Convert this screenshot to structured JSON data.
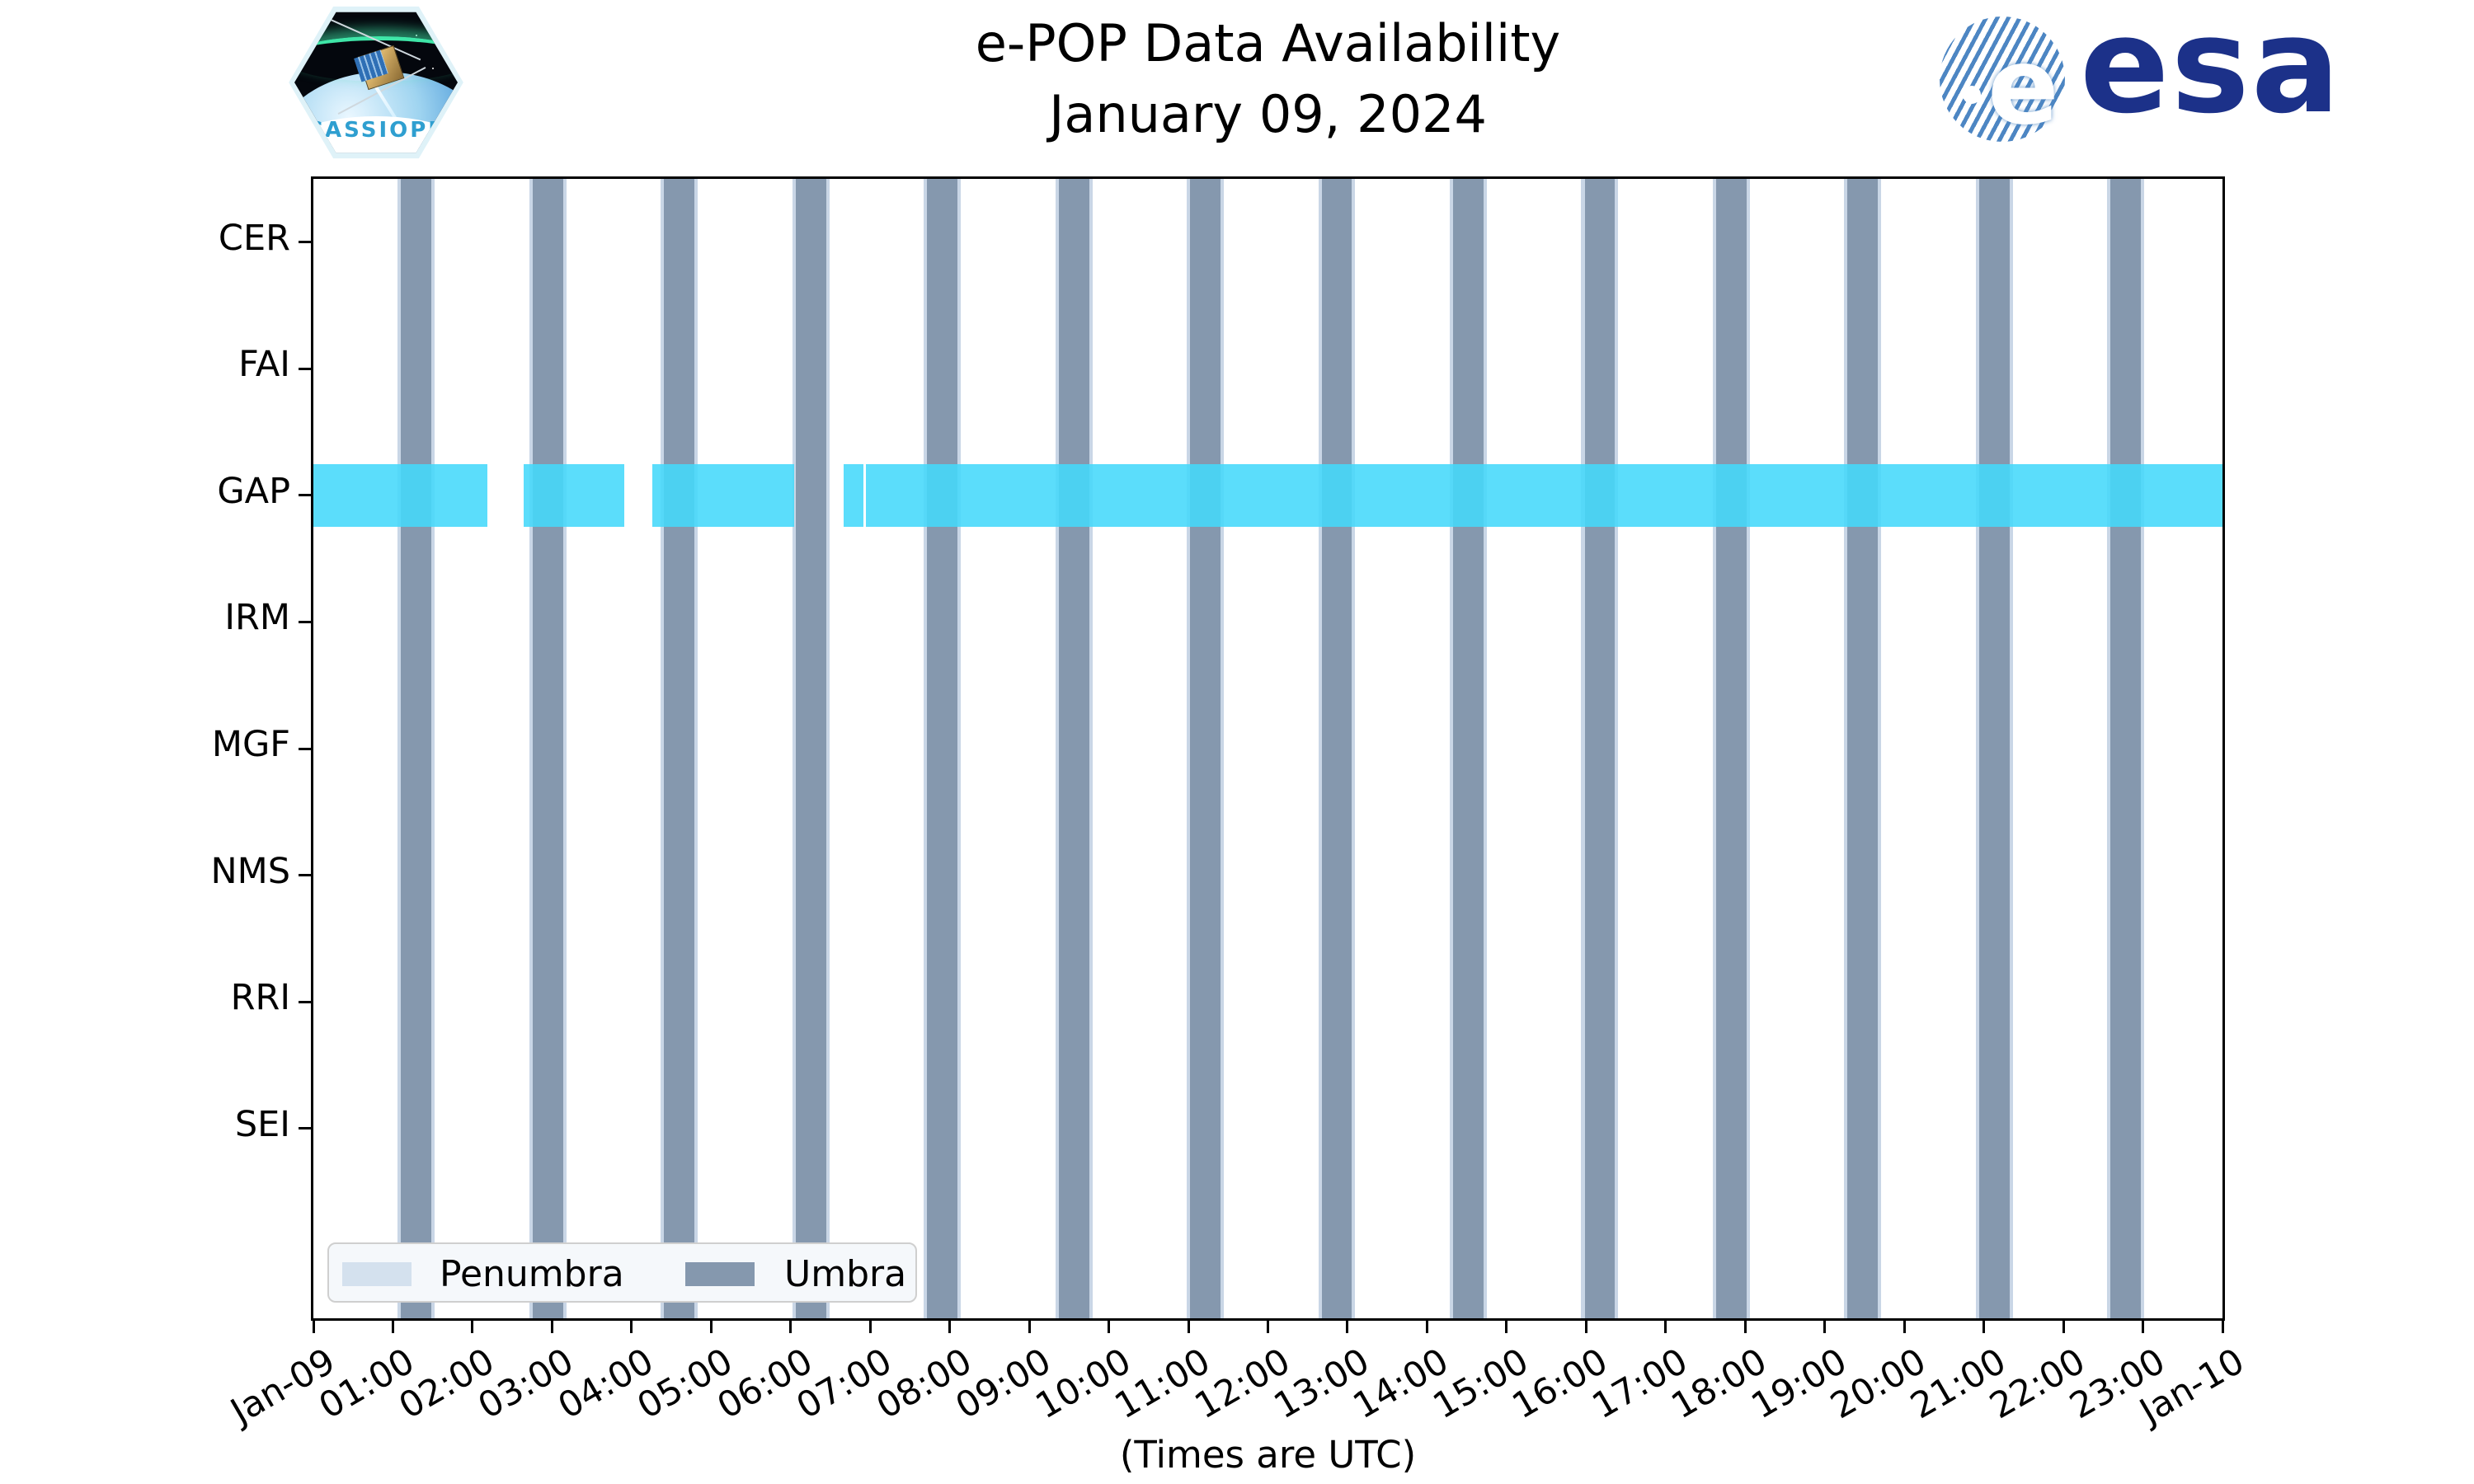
{
  "header": {
    "title_line1": "e-POP Data Availability",
    "title_line2": "January 09, 2024",
    "cassiope_patch_text": "CASSIOPE",
    "esa_wordmark": "esa",
    "esa_globe_letter": "e"
  },
  "chart_data": {
    "type": "bar",
    "variant": "availability-timeline-gantt",
    "title": "e-POP Data Availability",
    "subtitle": "January 09, 2024",
    "xlabel": "(Times are UTC)",
    "grid": false,
    "legend_position": "lower left",
    "categories": [
      "CER",
      "FAI",
      "GAP",
      "IRM",
      "MGF",
      "NMS",
      "RRI",
      "SEI"
    ],
    "x_axis": {
      "start_label": "Jan-09",
      "end_label": "Jan-10",
      "hours_span": 24,
      "tick_labels": [
        "Jan-09",
        "01:00",
        "02:00",
        "03:00",
        "04:00",
        "05:00",
        "06:00",
        "07:00",
        "08:00",
        "09:00",
        "10:00",
        "11:00",
        "12:00",
        "13:00",
        "14:00",
        "15:00",
        "16:00",
        "17:00",
        "18:00",
        "19:00",
        "20:00",
        "21:00",
        "22:00",
        "23:00",
        "Jan-10"
      ],
      "tick_rotation_deg": 30
    },
    "availability_hours_by_category": {
      "CER": [],
      "FAI": [],
      "GAP": [
        [
          0.0,
          2.19
        ],
        [
          2.64,
          3.91
        ],
        [
          4.26,
          6.04
        ],
        [
          6.67,
          6.915
        ],
        [
          6.948,
          24.0
        ]
      ],
      "IRM": [],
      "MGF": [],
      "NMS": [],
      "RRI": [],
      "SEI": []
    },
    "umbra_intervals_hours": [
      [
        1.101,
        1.484
      ],
      [
        2.755,
        3.137
      ],
      [
        4.408,
        4.791
      ],
      [
        6.061,
        6.444
      ],
      [
        7.715,
        8.097
      ],
      [
        9.368,
        9.751
      ],
      [
        11.021,
        11.404
      ],
      [
        12.675,
        13.057
      ],
      [
        14.328,
        14.711
      ],
      [
        15.981,
        16.364
      ],
      [
        17.635,
        18.017
      ],
      [
        19.288,
        19.671
      ],
      [
        20.941,
        21.324
      ],
      [
        22.595,
        22.977
      ]
    ],
    "penumbra_pad_hours": 0.042,
    "colors": {
      "available": "rgba(68,216,250,0.88)",
      "umbra": "#8598ae",
      "penumbra": "#c9d6e6",
      "legend_penumbra_swatch": "#d4e1ee",
      "legend_umbra_swatch": "#8598ae",
      "axis": "#000000",
      "esa_blue": "#1c3189",
      "esa_globe_stripe": "#4d86c3",
      "patch_text_blue": "#2f9fd0"
    },
    "legend": {
      "items": [
        {
          "label": "Penumbra",
          "color": "#d4e1ee"
        },
        {
          "label": "Umbra",
          "color": "#8598ae"
        }
      ]
    }
  }
}
